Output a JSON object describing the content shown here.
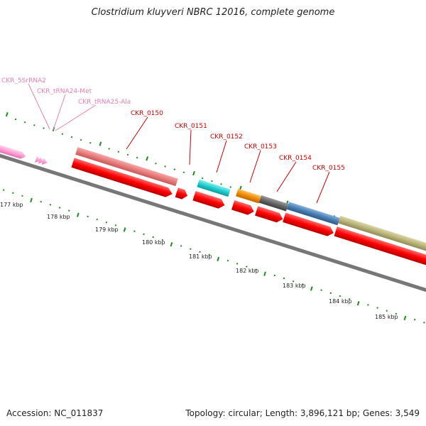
{
  "header": {
    "title": "Clostridium kluyveri NBRC 12016, complete genome"
  },
  "footer": {
    "accession": "Accession: NC_011837",
    "summary": "Topology: circular; Length: 3,896,121 bp; Genes: 3,549"
  },
  "scale": {
    "unit": "kbp",
    "ticks": [
      "177 kbp",
      "178 kbp",
      "179 kbp",
      "180 kbp",
      "181 kbp",
      "182 kbp",
      "183 kbp",
      "184 kbp",
      "185 kbp"
    ]
  },
  "rna_labels": [
    "CKR_5SrRNA2",
    "CKR_tRNA24-Met",
    "CKR_tRNA25-Ala"
  ],
  "gene_labels": [
    "CKR_0150",
    "CKR_0151",
    "CKR_0152",
    "CKR_0153",
    "CKR_0154",
    "CKR_0155"
  ],
  "colors": {
    "rna_label": "#e87fb0",
    "gene_label": "#cc0000",
    "cds_red": "#ff0000",
    "feature_salmon": "#e97c7c",
    "feature_cyan": "#1ecfcf",
    "feature_orange": "#f28a00",
    "feature_gray": "#666666",
    "feature_blue": "#4a7fb5",
    "feature_khaki": "#b9b37a",
    "rna_pink": "#ff9fd6",
    "backbone": "#777777",
    "tick_green": "#1e8c1e"
  }
}
